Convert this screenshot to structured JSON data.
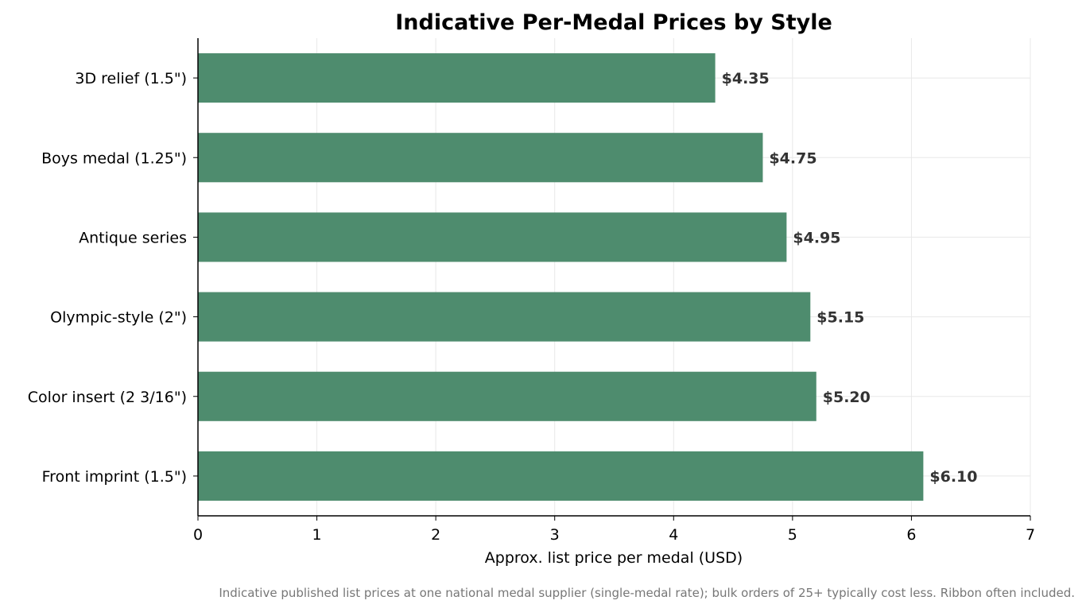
{
  "chart_data": {
    "type": "bar",
    "orientation": "horizontal",
    "title": "Indicative Per-Medal Prices by Style",
    "xlabel": "Approx. list price per medal (USD)",
    "ylabel": "",
    "categories": [
      "3D relief (1.5\")",
      "Boys medal (1.25\")",
      "Antique series",
      "Olympic-style (2\")",
      "Color insert (2 3/16\")",
      "Front imprint (1.5\")"
    ],
    "values": [
      4.35,
      4.75,
      4.95,
      5.15,
      5.2,
      6.1
    ],
    "value_labels": [
      "$4.35",
      "$4.75",
      "$4.95",
      "$5.15",
      "$5.20",
      "$6.10"
    ],
    "xlim": [
      0,
      7
    ],
    "xticks": [
      "0",
      "1",
      "2",
      "3",
      "4",
      "5",
      "6",
      "7"
    ],
    "grid": true,
    "bar_color": "#4e8c6e"
  },
  "caption": "Indicative published list prices at one national medal supplier (single-medal rate); bulk orders of 25+ typically cost less. Ribbon often included."
}
